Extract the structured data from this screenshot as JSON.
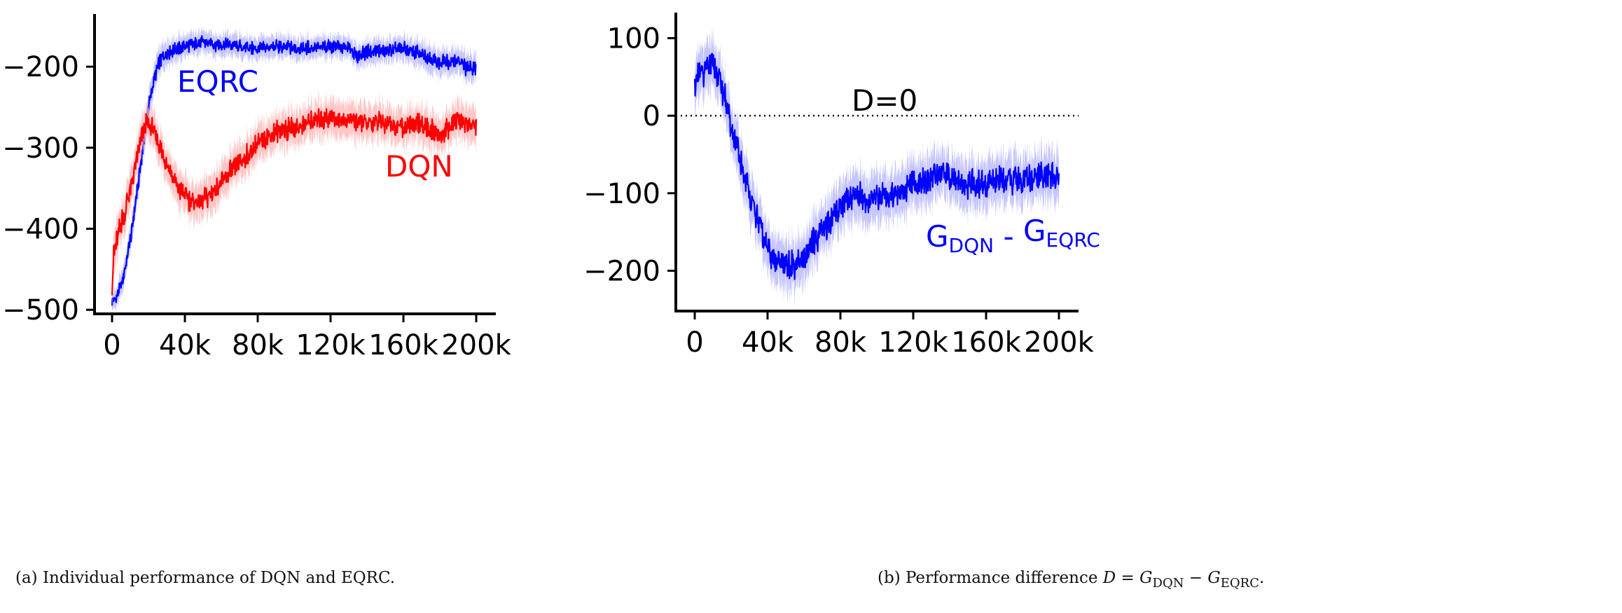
{
  "chart_data": [
    {
      "type": "line",
      "panel": "a",
      "caption": "(a) Individual performance of DQN and EQRC.",
      "xlim": [
        0,
        200000
      ],
      "ylim": [
        -505,
        -135
      ],
      "x_ticks": [
        0,
        40000,
        80000,
        120000,
        160000,
        200000
      ],
      "x_tick_labels": [
        "0",
        "40k",
        "80k",
        "120k",
        "160k",
        "200k"
      ],
      "y_ticks": [
        -500,
        -400,
        -300,
        -200
      ],
      "y_tick_labels": [
        "−500",
        "−400",
        "−300",
        "−200"
      ],
      "grid": false,
      "series": [
        {
          "name": "EQRC",
          "color": "#0000ff",
          "band_color": "#b3b3ff",
          "x": [
            0,
            2000,
            5000,
            8000,
            11000,
            14000,
            17000,
            20000,
            23000,
            26000,
            30000,
            35000,
            40000,
            45000,
            50000,
            60000,
            70000,
            80000,
            90000,
            100000,
            110000,
            120000,
            130000,
            135000,
            140000,
            150000,
            160000,
            170000,
            180000,
            190000,
            195000,
            200000
          ],
          "values": [
            -490,
            -487,
            -470,
            -440,
            -400,
            -350,
            -300,
            -250,
            -215,
            -195,
            -183,
            -178,
            -175,
            -172,
            -170,
            -173,
            -175,
            -178,
            -175,
            -177,
            -176,
            -175,
            -177,
            -188,
            -182,
            -180,
            -178,
            -185,
            -195,
            -192,
            -203,
            -200
          ],
          "band": [
            11,
            12,
            13,
            14,
            15,
            16,
            17,
            17,
            17,
            16,
            15,
            14,
            13,
            13,
            13,
            13,
            13,
            13,
            13,
            13,
            13,
            13,
            13,
            14,
            14,
            14,
            14,
            15,
            15,
            15,
            16,
            16
          ]
        },
        {
          "name": "DQN",
          "color": "#ff0000",
          "band_color": "#ffb3b3",
          "x": [
            0,
            1000,
            2000,
            4000,
            7000,
            10000,
            13000,
            16000,
            19000,
            22000,
            25000,
            30000,
            35000,
            40000,
            45000,
            50000,
            55000,
            60000,
            65000,
            70000,
            80000,
            90000,
            100000,
            110000,
            120000,
            130000,
            140000,
            150000,
            160000,
            170000,
            180000,
            190000,
            200000
          ],
          "values": [
            -470,
            -430,
            -420,
            -400,
            -380,
            -350,
            -320,
            -290,
            -268,
            -275,
            -290,
            -320,
            -345,
            -360,
            -367,
            -365,
            -355,
            -345,
            -330,
            -320,
            -295,
            -280,
            -275,
            -268,
            -262,
            -265,
            -272,
            -268,
            -275,
            -270,
            -285,
            -265,
            -275
          ],
          "band": [
            18,
            25,
            25,
            22,
            22,
            22,
            21,
            21,
            20,
            20,
            21,
            21,
            22,
            22,
            22,
            22,
            22,
            21,
            21,
            21,
            21,
            21,
            21,
            21,
            21,
            21,
            21,
            21,
            21,
            21,
            21,
            21,
            21
          ]
        }
      ],
      "annotations": [
        "EQRC",
        "DQN"
      ]
    },
    {
      "type": "line",
      "panel": "b",
      "caption": "(b) Performance difference D = G_DQN − G_EQRC.",
      "xlim": [
        0,
        200000
      ],
      "ylim": [
        -252,
        133
      ],
      "x_ticks": [
        0,
        40000,
        80000,
        120000,
        160000,
        200000
      ],
      "x_tick_labels": [
        "0",
        "40k",
        "80k",
        "120k",
        "160k",
        "200k"
      ],
      "y_ticks": [
        -200,
        -100,
        0,
        100
      ],
      "y_tick_labels": [
        "−200",
        "−100",
        "0",
        "100"
      ],
      "grid": false,
      "reference_line": {
        "y": 0,
        "style": "dotted",
        "label": "D=0"
      },
      "series": [
        {
          "name": "G_DQN - G_EQRC",
          "color": "#0000ff",
          "band_color": "#b3b3ff",
          "x": [
            0,
            2000,
            5000,
            8000,
            11000,
            14000,
            17000,
            20000,
            25000,
            30000,
            35000,
            40000,
            45000,
            50000,
            55000,
            60000,
            65000,
            70000,
            75000,
            80000,
            85000,
            90000,
            95000,
            100000,
            110000,
            120000,
            125000,
            130000,
            135000,
            140000,
            150000,
            160000,
            170000,
            180000,
            190000,
            200000
          ],
          "values": [
            40,
            50,
            58,
            62,
            60,
            45,
            20,
            -15,
            -60,
            -100,
            -140,
            -170,
            -190,
            -195,
            -192,
            -185,
            -165,
            -150,
            -135,
            -115,
            -105,
            -100,
            -110,
            -105,
            -100,
            -90,
            -85,
            -80,
            -70,
            -80,
            -88,
            -90,
            -80,
            -85,
            -75,
            -80
          ],
          "band": [
            30,
            30,
            30,
            30,
            30,
            30,
            30,
            30,
            30,
            30,
            30,
            30,
            30,
            30,
            30,
            30,
            30,
            30,
            30,
            30,
            30,
            30,
            30,
            30,
            30,
            30,
            30,
            30,
            30,
            30,
            30,
            30,
            30,
            30,
            30,
            30
          ]
        }
      ],
      "annotations": [
        "D=0"
      ]
    }
  ],
  "labels": {
    "eqrc": "EQRC",
    "dqn": "DQN",
    "d_zero": "D=0",
    "g": "G",
    "minus": " - ",
    "dqn_sub": "DQN",
    "eqrc_sub": "EQRC"
  },
  "captions": {
    "a": "(a) Individual performance of DQN and EQRC.",
    "b_prefix": "(b) Performance difference ",
    "b_d": "D",
    "b_eq": " = ",
    "b_g1": "G",
    "b_sub1": "DQN",
    "b_minus": " − ",
    "b_g2": "G",
    "b_sub2": "EQRC",
    "b_end": "."
  }
}
